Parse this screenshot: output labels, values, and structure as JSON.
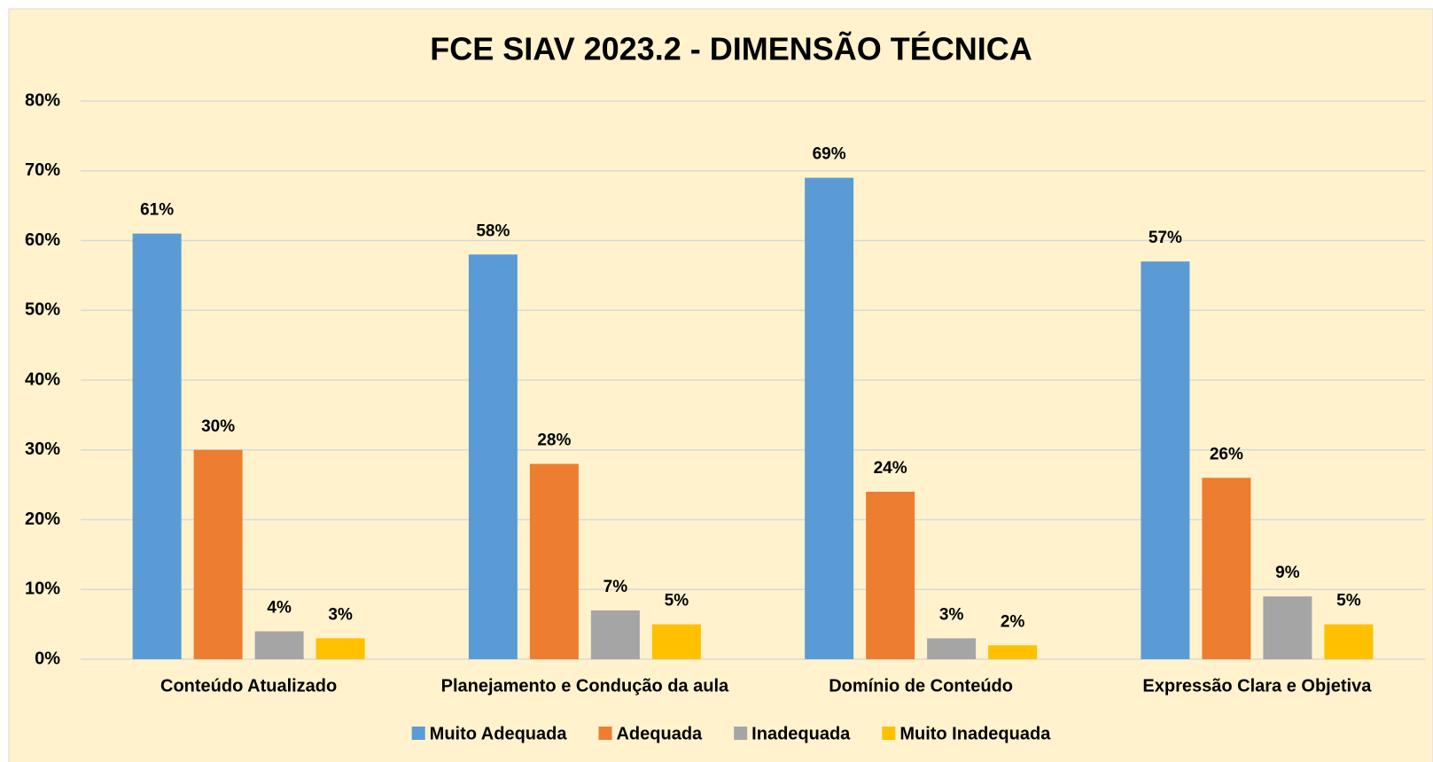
{
  "chart_data": {
    "type": "bar",
    "title": "FCE SIAV 2023.2 - DIMENSÃO TÉCNICA",
    "categories": [
      "Conteúdo Atualizado",
      "Planejamento e Condução da aula",
      "Domínio de Conteúdo",
      "Expressão Clara e Objetiva"
    ],
    "series": [
      {
        "name": "Muito Adequada",
        "color": "#5B9BD5",
        "values": [
          61,
          58,
          69,
          57
        ],
        "value_labels": [
          "61%",
          "58%",
          "69%",
          "57%"
        ]
      },
      {
        "name": "Adequada",
        "color": "#ED7D31",
        "values": [
          30,
          28,
          24,
          26
        ],
        "value_labels": [
          "30%",
          "28%",
          "24%",
          "26%"
        ]
      },
      {
        "name": "Inadequada",
        "color": "#A5A5A5",
        "values": [
          4,
          7,
          3,
          9
        ],
        "value_labels": [
          "4%",
          "7%",
          "3%",
          "9%"
        ]
      },
      {
        "name": "Muito Inadequada",
        "color": "#FFC000",
        "values": [
          3,
          5,
          2,
          5
        ],
        "value_labels": [
          "3%",
          "5%",
          "2%",
          "5%"
        ]
      }
    ],
    "ylim": [
      0,
      80
    ],
    "yticks": [
      {
        "value": 0,
        "label": "0%"
      },
      {
        "value": 10,
        "label": "10%"
      },
      {
        "value": 20,
        "label": "20%"
      },
      {
        "value": 30,
        "label": "30%"
      },
      {
        "value": 40,
        "label": "40%"
      },
      {
        "value": 50,
        "label": "50%"
      },
      {
        "value": 60,
        "label": "60%"
      },
      {
        "value": 70,
        "label": "70%"
      },
      {
        "value": 80,
        "label": "80%"
      }
    ],
    "grid": true,
    "legend": "bottom"
  }
}
